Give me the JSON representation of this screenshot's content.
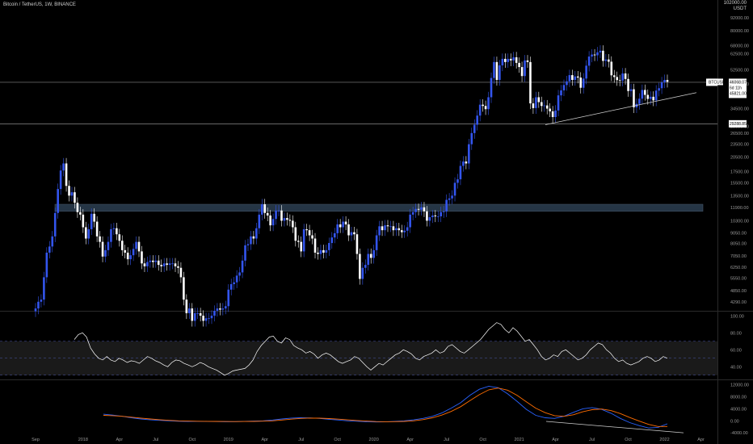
{
  "header": {
    "symbol": "Bitcoin / TetherUS, 1W, BINANCE"
  },
  "currency": {
    "top": "102000.00",
    "unit": "USDT"
  },
  "price_labels": {
    "current": "46068.07",
    "countdown": "6d 11h",
    "level_upper": "45821.00",
    "symbol_tag": "BTCUSDT",
    "level_lower": "29288.85"
  },
  "colors": {
    "background": "#000000",
    "bull_candle": "#3355ee",
    "bear_candle": "#ffffff",
    "rsi_line": "#ffffff",
    "rsi_band": "#1a1a1a",
    "macd_line": "#2962ff",
    "signal_line": "#ff6d00",
    "zone": "#2a3b4d"
  },
  "chart_data": [
    {
      "type": "candlestick",
      "title": "Bitcoin / TetherUS, 1W, BINANCE",
      "scale": "log",
      "ylim": [
        3900,
        102000
      ],
      "yticks": [
        92000,
        80000,
        68000,
        62500,
        52500,
        45000,
        34500,
        28500,
        26500,
        23500,
        20500,
        17500,
        15500,
        13500,
        11900,
        10300,
        9050,
        8050,
        7050,
        6250,
        5550,
        4850,
        4290
      ],
      "xticks": [
        "Sep",
        "2018",
        "Apr",
        "Jul",
        "Oct",
        "2019",
        "Apr",
        "Jul",
        "Oct",
        "2020",
        "Apr",
        "Jul",
        "Oct",
        "2021",
        "Apr",
        "Jul",
        "Oct",
        "2022",
        "Apr",
        "Jul"
      ],
      "xtick_positions_week": [
        0,
        17,
        30,
        43,
        56,
        69,
        82,
        95,
        108,
        121,
        134,
        147,
        160,
        173,
        186,
        199,
        212,
        225,
        238,
        251
      ],
      "close": [
        4000,
        4300,
        4400,
        5600,
        7300,
        7800,
        8700,
        11200,
        14500,
        17700,
        19100,
        15000,
        13500,
        14000,
        12500,
        11300,
        11000,
        9600,
        8500,
        9400,
        11100,
        10200,
        8700,
        8200,
        7000,
        7500,
        8200,
        9400,
        9500,
        8900,
        8300,
        7500,
        7300,
        6800,
        7100,
        7600,
        8200,
        7400,
        6500,
        6300,
        6600,
        6700,
        6600,
        6700,
        6400,
        6300,
        6500,
        6400,
        6500,
        6500,
        6300,
        6200,
        5600,
        4400,
        3800,
        4000,
        3500,
        3800,
        3800,
        3700,
        3500,
        3600,
        3600,
        3700,
        3900,
        4000,
        3950,
        4000,
        4100,
        4900,
        5200,
        5300,
        5700,
        5900,
        6700,
        7900,
        8000,
        8700,
        8500,
        9500,
        11000,
        12300,
        11200,
        10900,
        9800,
        10500,
        11500,
        11500,
        10300,
        10600,
        10400,
        10300,
        9600,
        8300,
        8200,
        7400,
        9400,
        9300,
        8800,
        8500,
        7300,
        7200,
        7500,
        7300,
        7500,
        8100,
        8600,
        9000,
        9900,
        9600,
        10200,
        9900,
        8800,
        9100,
        8900,
        7200,
        5500,
        6200,
        6400,
        7200,
        6900,
        7500,
        8800,
        9700,
        9300,
        9800,
        9700,
        9700,
        9300,
        9500,
        9300,
        9100,
        9250,
        9600,
        11000,
        11300,
        11700,
        11600,
        11900,
        11400,
        10300,
        10700,
        10900,
        10800,
        10800,
        11300,
        11400,
        12900,
        13100,
        13500,
        15500,
        16100,
        18600,
        19500,
        19100,
        23500,
        26500,
        29000,
        32000,
        36000,
        35500,
        34300,
        39000,
        48000,
        57000,
        47000,
        55000,
        59000,
        57000,
        59000,
        58000,
        60000,
        56500,
        54000,
        49000,
        58000,
        57000,
        36500,
        34700,
        39000,
        37000,
        35500,
        35700,
        34500,
        33500,
        31500,
        33800,
        39800,
        42000,
        44500,
        46300,
        49500,
        47000,
        48800,
        48200,
        43200,
        47700,
        54800,
        60500,
        61800,
        61300,
        63300,
        64400,
        57700,
        58600,
        57200,
        49400,
        48500,
        46900,
        46700,
        50400,
        47500,
        41700,
        42500,
        35000,
        36300,
        38400,
        42200,
        40000,
        38300,
        39200,
        37700,
        41900,
        43000,
        45800,
        47000,
        46068
      ],
      "horizontal_levels": [
        45821.0,
        29288.85
      ],
      "zone": [
        11400,
        12300
      ],
      "trendline": {
        "from": [
          4100,
          29000
        ],
        "to": [
          4400,
          41000
        ]
      }
    },
    {
      "type": "line",
      "title": "RSI",
      "yticks": [
        100,
        80,
        60,
        40
      ],
      "band": [
        30,
        70
      ],
      "midline": 50,
      "series": [
        {
          "values": [
            72,
            78,
            80,
            75,
            62,
            55,
            50,
            48,
            52,
            48,
            46,
            50,
            48,
            45,
            47,
            46,
            44,
            48,
            52,
            50,
            47,
            45,
            42,
            40,
            45,
            48,
            47,
            44,
            42,
            40,
            42,
            45,
            43,
            40,
            38,
            36,
            33,
            30,
            32,
            35,
            36,
            37,
            38,
            42,
            48,
            58,
            65,
            70,
            75,
            76,
            70,
            68,
            74,
            72,
            65,
            62,
            60,
            56,
            58,
            55,
            50,
            54,
            56,
            54,
            50,
            46,
            44,
            46,
            48,
            52,
            50,
            45,
            40,
            36,
            40,
            44,
            42,
            46,
            50,
            54,
            56,
            60,
            58,
            55,
            50,
            48,
            52,
            54,
            56,
            60,
            56,
            58,
            64,
            66,
            62,
            58,
            56,
            60,
            64,
            68,
            72,
            78,
            84,
            88,
            92,
            90,
            84,
            80,
            86,
            82,
            76,
            70,
            72,
            66,
            60,
            52,
            48,
            50,
            54,
            52,
            58,
            60,
            56,
            52,
            48,
            50,
            54,
            60,
            64,
            68,
            66,
            60,
            56,
            50,
            46,
            48,
            44,
            42,
            44,
            46,
            50,
            52,
            50,
            46,
            48,
            52,
            50
          ]
        }
      ]
    },
    {
      "type": "line",
      "title": "MACD",
      "yticks": [
        12000,
        8000,
        4000,
        0,
        -4000
      ],
      "ylim": [
        -4500,
        13500
      ],
      "series": [
        {
          "values": [
            2200,
            1900,
            1500,
            1000,
            600,
            300,
            150,
            0,
            -150,
            -200,
            -180,
            -200,
            -250,
            -300,
            -280,
            -200,
            -100,
            0,
            250,
            600,
            900,
            1000,
            950,
            800,
            500,
            250,
            0,
            -150,
            -300,
            -400,
            -350,
            -200,
            0,
            300,
            800,
            1500,
            2600,
            4200,
            6000,
            8500,
            10500,
            11500,
            11000,
            9000,
            6500,
            3800,
            1800,
            1000,
            800,
            1500,
            2800,
            4000,
            4400,
            3800,
            2500,
            800,
            -600,
            -1600,
            -2400,
            -2200,
            -1000
          ]
        },
        {
          "values": [
            1800,
            1700,
            1500,
            1200,
            900,
            600,
            350,
            150,
            0,
            -100,
            -150,
            -180,
            -200,
            -230,
            -250,
            -240,
            -200,
            -120,
            0,
            250,
            550,
            800,
            900,
            880,
            750,
            550,
            300,
            100,
            -100,
            -250,
            -300,
            -280,
            -200,
            0,
            400,
            1000,
            1900,
            3100,
            4700,
            6700,
            8700,
            10300,
            10900,
            10200,
            8500,
            6300,
            4200,
            2700,
            1700,
            1500,
            2000,
            3000,
            3700,
            3900,
            3400,
            2400,
            1100,
            -100,
            -1200,
            -1900,
            -1900
          ]
        }
      ],
      "trendline": {
        "from": [
          9000,
          -200
        ],
        "to": [
          -4000,
          -4000
        ]
      }
    }
  ],
  "x_ticks_labels": [
    "Sep",
    "2018",
    "Apr",
    "Jul",
    "Oct",
    "2019",
    "Apr",
    "Jul",
    "Oct",
    "2020",
    "Apr",
    "Jul",
    "Oct",
    "2021",
    "Apr",
    "Jul",
    "Oct",
    "2022",
    "Apr",
    "Jul"
  ],
  "rsi_ticks_labels": [
    "100.00",
    "80.00",
    "60.00",
    "40.00"
  ],
  "macd_ticks_labels": [
    "12000.00",
    "8000.00",
    "4000.00",
    "0.00",
    "-4000.00"
  ],
  "price_ticks_labels": [
    "92000.00",
    "80000.00",
    "68000.00",
    "62500.00",
    "52500.00",
    "45000.00",
    "34500.00",
    "28500.00",
    "26500.00",
    "23500.00",
    "20500.00",
    "17500.00",
    "15500.00",
    "13500.00",
    "11900.00",
    "10300.00",
    "9050.00",
    "8050.00",
    "7050.00",
    "6250.00",
    "5550.00",
    "4850.00",
    "4290.00"
  ]
}
